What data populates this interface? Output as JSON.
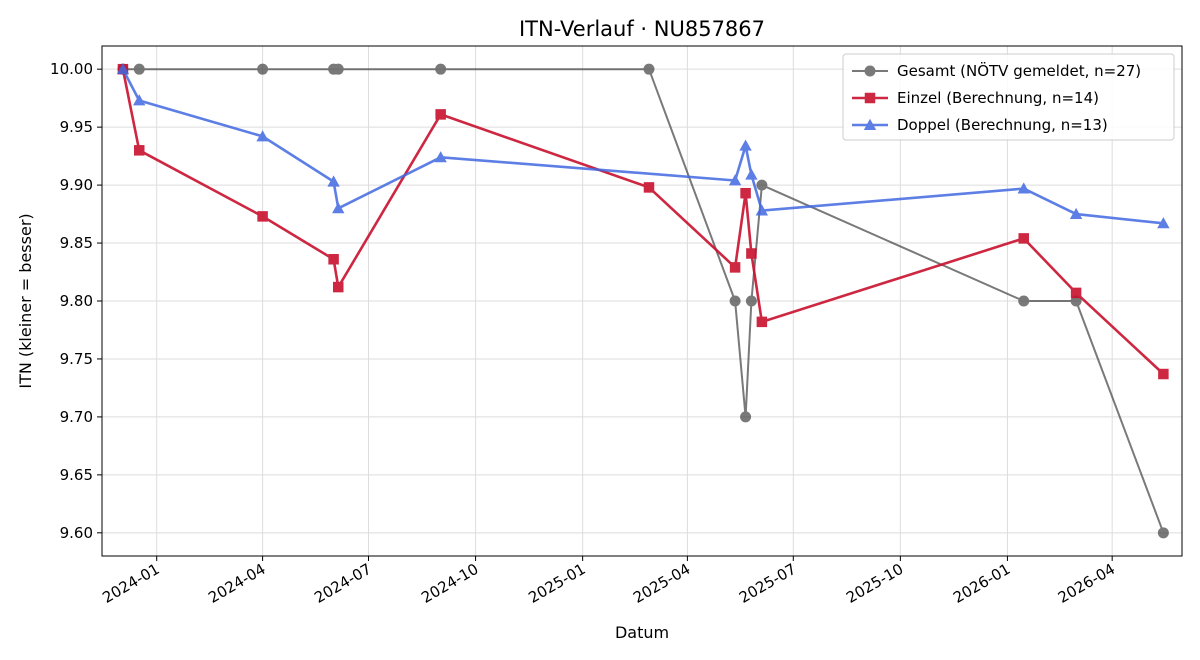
{
  "chart_data": {
    "type": "line",
    "title": "ITN-Verlauf · NU857867",
    "xlabel": "Datum",
    "ylabel": "ITN  (kleiner = besser)",
    "x_tick_labels": [
      "2024-01",
      "2024-04",
      "2024-07",
      "2024-10",
      "2025-01",
      "2025-04",
      "2025-07",
      "2025-10",
      "2026-01",
      "2026-04"
    ],
    "x_tick_dates": [
      "2024-01-01",
      "2024-04-01",
      "2024-07-01",
      "2024-10-01",
      "2025-01-01",
      "2025-04-01",
      "2025-07-01",
      "2025-10-01",
      "2026-01-01",
      "2026-04-01"
    ],
    "xlim": [
      "2023-11-15",
      "2026-05-31"
    ],
    "ylim": [
      9.58,
      10.02
    ],
    "y_ticks": [
      "9.60",
      "9.65",
      "9.70",
      "9.75",
      "9.80",
      "9.85",
      "9.90",
      "9.95",
      "10.00"
    ],
    "grid": true,
    "legend": "top-right",
    "series": [
      {
        "name": "Gesamt (NÖTV gemeldet, n=27)",
        "color": "#333333",
        "marker": "circle",
        "x": [
          "2023-12-03",
          "2023-12-17",
          "2024-04-01",
          "2024-06-01",
          "2024-06-05",
          "2024-09-01",
          "2025-02-27",
          "2025-05-12",
          "2025-05-21",
          "2025-05-26",
          "2025-06-04",
          "2026-01-15",
          "2026-03-01",
          "2026-05-15"
        ],
        "y": [
          10.0,
          10.0,
          10.0,
          10.0,
          10.0,
          10.0,
          10.0,
          9.8,
          9.7,
          9.8,
          9.9,
          9.8,
          9.8,
          9.6
        ]
      },
      {
        "name": "Einzel (Berechnung, n=14)",
        "color": "#c8102e",
        "marker": "square",
        "x": [
          "2023-12-03",
          "2023-12-17",
          "2024-04-01",
          "2024-06-01",
          "2024-06-05",
          "2024-09-01",
          "2025-02-27",
          "2025-05-12",
          "2025-05-21",
          "2025-05-26",
          "2025-06-04",
          "2026-01-15",
          "2026-03-01",
          "2026-05-15"
        ],
        "y": [
          10.0,
          9.93,
          9.873,
          9.836,
          9.812,
          9.961,
          9.898,
          9.829,
          9.893,
          9.841,
          9.782,
          9.854,
          9.807,
          9.737
        ]
      },
      {
        "name": "Doppel (Berechnung, n=13)",
        "color": "#4169e1",
        "marker": "triangle",
        "x": [
          "2023-12-03",
          "2023-12-17",
          "2024-04-01",
          "2024-06-01",
          "2024-06-05",
          "2024-09-01",
          "2025-05-12",
          "2025-05-21",
          "2025-05-26",
          "2025-06-04",
          "2026-01-15",
          "2026-03-01",
          "2026-05-15"
        ],
        "y": [
          10.0,
          9.973,
          9.942,
          9.903,
          9.88,
          9.924,
          9.904,
          9.934,
          9.909,
          9.878,
          9.897,
          9.875,
          9.867
        ]
      }
    ]
  }
}
